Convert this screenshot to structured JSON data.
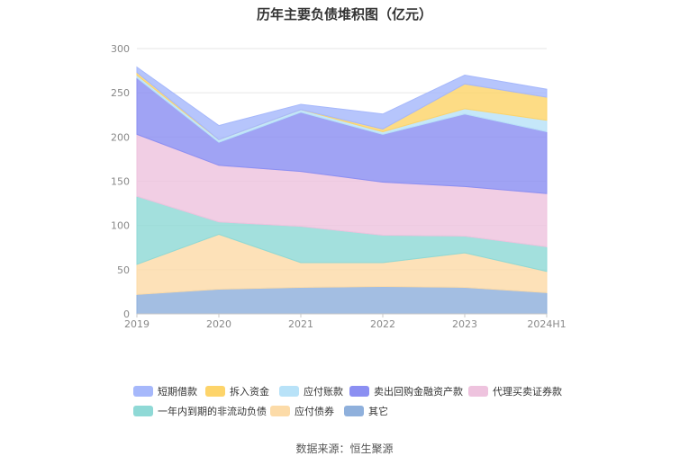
{
  "chart_data": {
    "type": "area",
    "stacked": true,
    "title": "历年主要负债堆积图（亿元）",
    "source": "数据来源：恒生聚源",
    "x": [
      "2019",
      "2020",
      "2021",
      "2022",
      "2023",
      "2024H1"
    ],
    "ylim": [
      0,
      300
    ],
    "yticks": [
      0,
      50,
      100,
      150,
      200,
      250,
      300
    ],
    "grid": true,
    "legend_position": "bottom",
    "series": [
      {
        "name": "其它",
        "color": "#8fb0dc",
        "values": [
          22,
          28,
          30,
          31,
          30,
          24
        ]
      },
      {
        "name": "应付债券",
        "color": "#fcdba8",
        "values": [
          34,
          62,
          28,
          27,
          39,
          24
        ]
      },
      {
        "name": "一年内到期的非流动负债",
        "color": "#8fd9d6",
        "values": [
          77,
          14,
          41,
          31,
          19,
          28
        ]
      },
      {
        "name": "代理买卖证券款",
        "color": "#eec3de",
        "values": [
          70,
          64,
          62,
          60,
          56,
          60
        ]
      },
      {
        "name": "卖出回购金融资产款",
        "color": "#8b8ff2",
        "values": [
          64,
          26,
          67,
          54,
          82,
          70
        ]
      },
      {
        "name": "应付账款",
        "color": "#b8e2f8",
        "values": [
          3,
          3,
          3,
          3,
          6,
          13
        ]
      },
      {
        "name": "拆入资金",
        "color": "#fdd46a",
        "values": [
          3,
          0,
          0,
          3,
          28,
          26
        ]
      },
      {
        "name": "短期借款",
        "color": "#a6b8fb",
        "values": [
          6,
          16,
          6,
          17,
          10,
          9
        ]
      }
    ],
    "legend_order": [
      "短期借款",
      "拆入资金",
      "应付账款",
      "卖出回购金融资产款",
      "代理买卖证券款",
      "一年内到期的非流动负债",
      "应付债券",
      "其它"
    ]
  }
}
